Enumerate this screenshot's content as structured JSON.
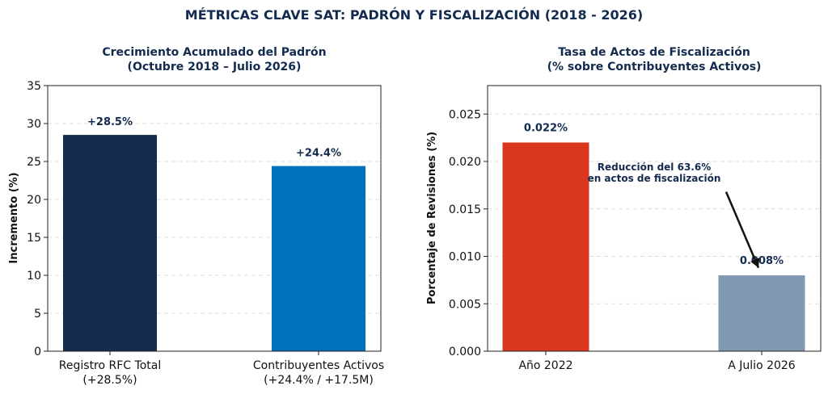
{
  "suptitle": "MÉTRICAS CLAVE SAT: PADRÓN Y FISCALIZACIÓN (2018 - 2026)",
  "colors": {
    "navy": "#132b4f",
    "blue": "#0072bd",
    "red": "#d9381e",
    "slate": "#8199b1",
    "grid": "#dddddd"
  },
  "chart_data": [
    {
      "type": "bar",
      "title_line1": "Crecimiento Acumulado del Padrón",
      "title_line2": "(Octubre 2018 – Julio 2026)",
      "ylabel": "Incremento (%)",
      "xlabel": "",
      "ylim": [
        0,
        35
      ],
      "yticks": [
        0,
        5,
        10,
        15,
        20,
        25,
        30,
        35
      ],
      "ytick_labels": [
        "0",
        "5",
        "10",
        "15",
        "20",
        "25",
        "30",
        "35"
      ],
      "grid": "y-dashed",
      "categories": [
        {
          "line1": "Registro RFC Total",
          "line2": "(+28.5%)"
        },
        {
          "line1": "Contribuyentes Activos",
          "line2": "(+24.4% / +17.5M)"
        }
      ],
      "values": [
        28.5,
        24.4
      ],
      "data_labels": [
        "+28.5%",
        "+24.4%"
      ],
      "bar_colors": [
        "#132b4f",
        "#0072bd"
      ]
    },
    {
      "type": "bar",
      "title_line1": "Tasa de Actos de Fiscalización",
      "title_line2": "(% sobre Contribuyentes Activos)",
      "ylabel": "Porcentaje de Revisiones (%)",
      "xlabel": "",
      "ylim": [
        0,
        0.028
      ],
      "yticks": [
        0,
        0.005,
        0.01,
        0.015,
        0.02,
        0.025
      ],
      "ytick_labels": [
        "0.000",
        "0.005",
        "0.010",
        "0.015",
        "0.020",
        "0.025"
      ],
      "grid": "y-dashed",
      "categories": [
        {
          "line1": "Año 2022",
          "line2": ""
        },
        {
          "line1": "A Julio 2026",
          "line2": ""
        }
      ],
      "values": [
        0.022,
        0.008
      ],
      "data_labels": [
        "0.022%",
        "0.008%"
      ],
      "bar_colors": [
        "#d9381e",
        "#8199b1"
      ],
      "annotation": {
        "line1": "Reducción del 63.6%",
        "line2": "en actos de fiscalización",
        "arrow_from_value": 0.0168,
        "arrow_to_value": 0.0088
      }
    }
  ]
}
